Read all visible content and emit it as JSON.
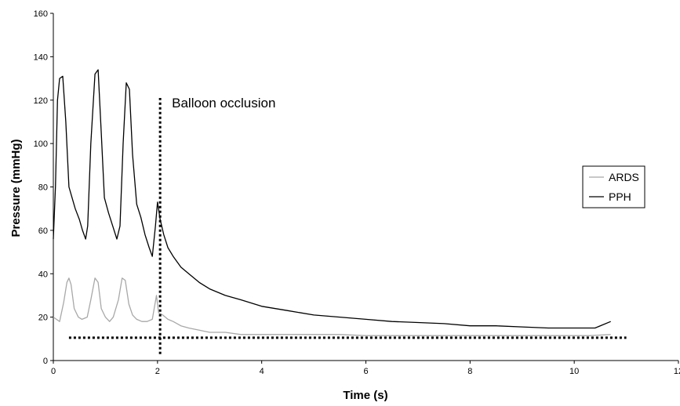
{
  "chart_data": {
    "type": "line",
    "title": "",
    "xlabel": "Time (s)",
    "ylabel": "Pressure (mmHg)",
    "xlim": [
      0,
      12
    ],
    "ylim": [
      0,
      160
    ],
    "x_ticks": [
      0,
      2,
      4,
      6,
      8,
      10,
      12
    ],
    "y_ticks": [
      0,
      20,
      40,
      60,
      80,
      100,
      120,
      140,
      160
    ],
    "grid": false,
    "legend_position": "right",
    "series": [
      {
        "name": "ARDS",
        "color": "#a8a8a8",
        "x": [
          0.0,
          0.12,
          0.2,
          0.26,
          0.3,
          0.34,
          0.4,
          0.48,
          0.55,
          0.65,
          0.72,
          0.8,
          0.86,
          0.92,
          1.0,
          1.08,
          1.15,
          1.25,
          1.32,
          1.38,
          1.45,
          1.52,
          1.6,
          1.7,
          1.8,
          1.9,
          1.98,
          2.02,
          2.1,
          2.2,
          2.3,
          2.45,
          2.6,
          2.8,
          3.0,
          3.3,
          3.6,
          4.0,
          4.5,
          5.0,
          5.5,
          6.0,
          6.5,
          7.0,
          7.5,
          8.0,
          8.5,
          9.0,
          9.5,
          10.0,
          10.3,
          10.7
        ],
        "y": [
          20,
          18,
          27,
          36,
          38,
          35,
          24,
          20,
          19,
          20,
          28,
          38,
          36,
          24,
          20,
          18,
          20,
          28,
          38,
          37,
          26,
          21,
          19,
          18,
          18,
          19,
          30,
          22,
          21,
          19,
          18,
          16,
          15,
          14,
          13,
          13,
          12,
          12,
          12,
          12,
          12,
          11.5,
          11.5,
          11.5,
          11.5,
          11.5,
          11.5,
          11.5,
          11.5,
          11.5,
          11.5,
          12
        ]
      },
      {
        "name": "PPH",
        "color": "#000000",
        "x": [
          0.0,
          0.04,
          0.08,
          0.12,
          0.18,
          0.24,
          0.3,
          0.36,
          0.42,
          0.5,
          0.56,
          0.62,
          0.66,
          0.72,
          0.8,
          0.86,
          0.92,
          0.98,
          1.06,
          1.14,
          1.22,
          1.28,
          1.34,
          1.4,
          1.46,
          1.52,
          1.6,
          1.68,
          1.76,
          1.84,
          1.9,
          1.96,
          2.0,
          2.05,
          2.12,
          2.2,
          2.3,
          2.45,
          2.6,
          2.8,
          3.0,
          3.3,
          3.6,
          4.0,
          4.5,
          5.0,
          5.5,
          6.0,
          6.5,
          7.0,
          7.5,
          8.0,
          8.5,
          9.0,
          9.5,
          10.0,
          10.4,
          10.7
        ],
        "y": [
          56,
          80,
          120,
          130,
          131,
          110,
          80,
          75,
          70,
          65,
          60,
          56,
          62,
          100,
          132,
          134,
          105,
          75,
          68,
          62,
          56,
          62,
          100,
          128,
          125,
          95,
          72,
          66,
          58,
          52,
          48,
          62,
          73,
          65,
          58,
          52,
          48,
          43,
          40,
          36,
          33,
          30,
          28,
          25,
          23,
          21,
          20,
          19,
          18,
          17.5,
          17,
          16,
          16,
          15.5,
          15,
          15,
          15,
          18
        ]
      },
      {
        "name": "",
        "color": "#000000",
        "style": "dotted",
        "x": [
          0.3,
          11.0
        ],
        "y": [
          10.5,
          10.5
        ]
      }
    ],
    "annotations": [
      {
        "text": "Balloon occlusion",
        "x": 2.05,
        "y_from": 3,
        "y_to": 121
      }
    ]
  }
}
